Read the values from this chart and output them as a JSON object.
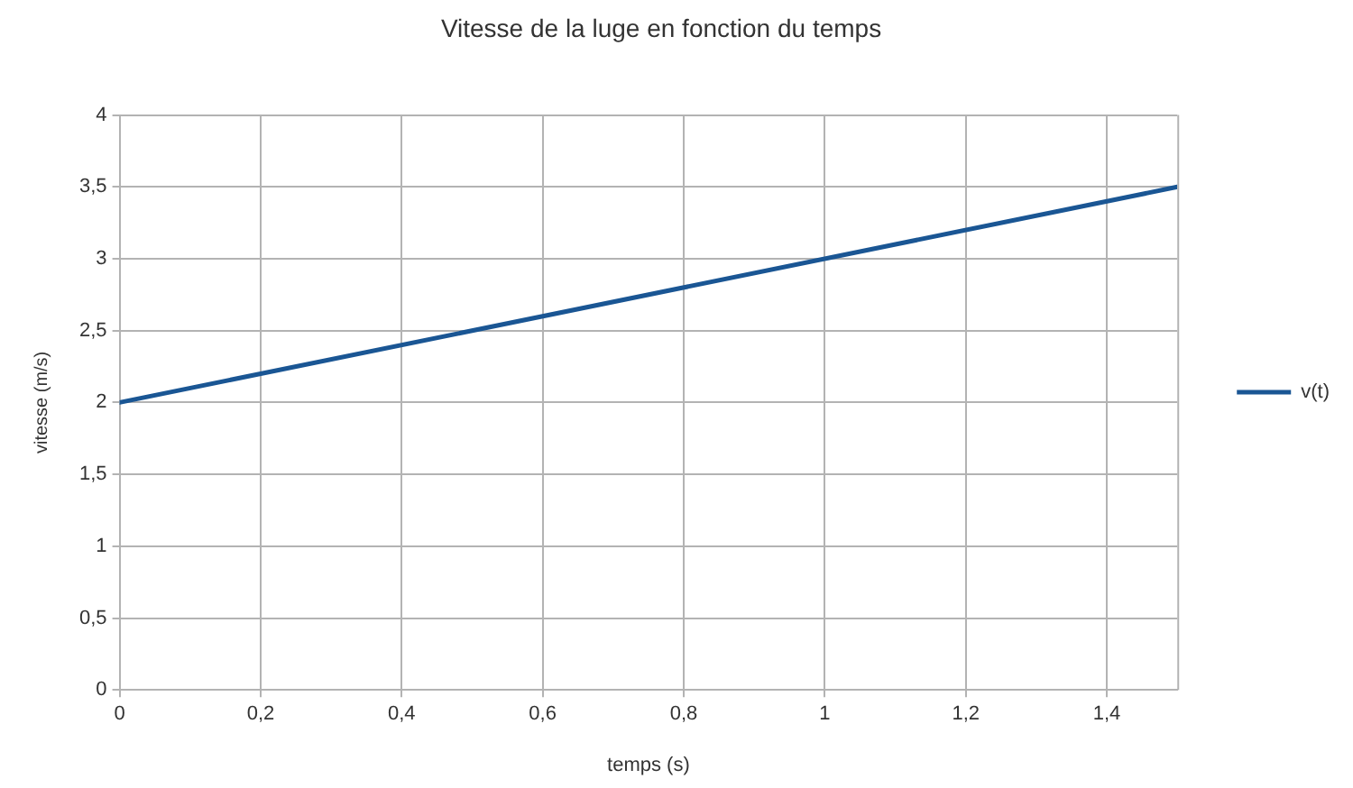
{
  "chart_data": {
    "type": "line",
    "title": "Vitesse de la luge en fonction du temps",
    "xlabel": "temps (s)",
    "ylabel": "vitesse (m/s)",
    "x": [
      0,
      1.5
    ],
    "series": [
      {
        "name": "v(t)",
        "color": "#1a5694",
        "values": [
          2,
          3.5
        ]
      }
    ],
    "xlim": [
      0,
      1.5
    ],
    "xticks": [
      0,
      {
        "value": 0.2,
        "label": "0,2"
      },
      {
        "value": 0.4,
        "label": "0,4"
      },
      {
        "value": 0.6,
        "label": "0,6"
      },
      {
        "value": 0.8,
        "label": "0,8"
      },
      1,
      {
        "value": 1.2,
        "label": "1,2"
      },
      {
        "value": 1.4,
        "label": "1,4"
      }
    ],
    "ylim": [
      0,
      4
    ],
    "yticks": [
      0,
      {
        "value": 0.5,
        "label": "0,5"
      },
      1,
      {
        "value": 1.5,
        "label": "1,5"
      },
      2,
      {
        "value": 2.5,
        "label": "2,5"
      },
      3,
      {
        "value": 3.5,
        "label": "3,5"
      },
      4
    ],
    "grid": true,
    "legend": "right",
    "marker": "none",
    "line_style": "solid"
  }
}
